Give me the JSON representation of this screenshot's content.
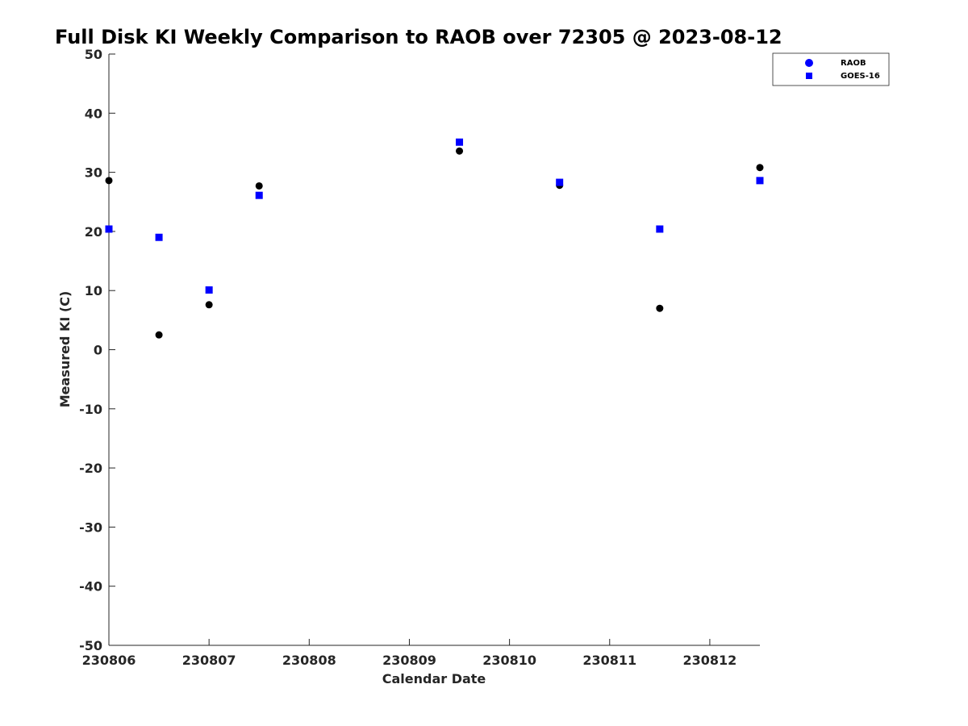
{
  "chart_data": {
    "type": "scatter",
    "title": "Full Disk KI Weekly Comparison to RAOB over 72305 @ 2023-08-12",
    "xlabel": "Calendar Date",
    "ylabel": "Measured KI (C)",
    "xlim": [
      "2023-08-06",
      "2023-08-12 12:00"
    ],
    "ylim": [
      -50,
      50
    ],
    "xticks": [
      "230806",
      "230807",
      "230808",
      "230809",
      "230810",
      "230811",
      "230812"
    ],
    "yticks": [
      "50",
      "40",
      "30",
      "20",
      "10",
      "0",
      "-10",
      "-20",
      "-30",
      "-40",
      "-50"
    ],
    "grid": false,
    "legend": "top-right",
    "colors": {
      "raob": "#000000",
      "goes": "#0000ff",
      "axis": "#262626"
    },
    "series": [
      {
        "name": "RAOB",
        "marker": "circle",
        "legend_color": "#0000ff",
        "x": [
          "2023-08-06 00:00",
          "2023-08-06 12:00",
          "2023-08-07 00:00",
          "2023-08-07 12:00",
          "2023-08-09 12:00",
          "2023-08-10 12:00",
          "2023-08-11 12:00",
          "2023-08-12 12:00"
        ],
        "y": [
          28.6,
          2.5,
          7.6,
          27.7,
          33.6,
          27.8,
          7.0,
          30.8
        ]
      },
      {
        "name": "GOES-16",
        "marker": "square",
        "x": [
          "2023-08-06 00:00",
          "2023-08-06 12:00",
          "2023-08-07 00:00",
          "2023-08-07 12:00",
          "2023-08-09 12:00",
          "2023-08-10 12:00",
          "2023-08-11 12:00",
          "2023-08-12 12:00"
        ],
        "y": [
          20.4,
          19.0,
          10.1,
          26.1,
          35.1,
          28.3,
          20.4,
          28.6
        ]
      }
    ]
  }
}
